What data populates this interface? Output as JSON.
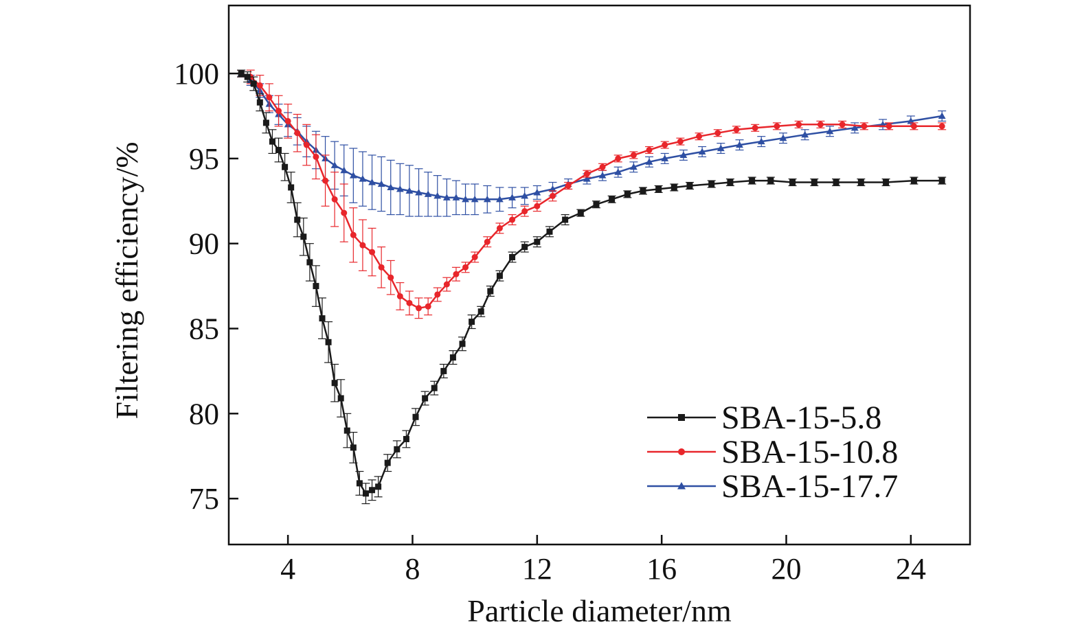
{
  "chart_data": {
    "type": "line",
    "title": "",
    "xlabel": "Particle diameter/nm",
    "ylabel": "Filtering efficiency/%",
    "xlim": [
      2.1,
      25.9
    ],
    "ylim": [
      72.3,
      104
    ],
    "xticks": [
      4,
      8,
      12,
      16,
      20,
      24
    ],
    "yticks": [
      75,
      80,
      85,
      90,
      95,
      100
    ],
    "grid": false,
    "legend": "bottom-right",
    "series": [
      {
        "name": "SBA-15-5.8",
        "color": "#1a1a1a",
        "marker": "square",
        "x": [
          2.5,
          2.7,
          2.9,
          3.1,
          3.3,
          3.5,
          3.7,
          3.9,
          4.1,
          4.3,
          4.5,
          4.7,
          4.9,
          5.1,
          5.3,
          5.5,
          5.7,
          5.9,
          6.1,
          6.3,
          6.5,
          6.7,
          6.9,
          7.2,
          7.5,
          7.8,
          8.1,
          8.4,
          8.7,
          9.0,
          9.3,
          9.6,
          9.9,
          10.2,
          10.5,
          10.8,
          11.2,
          11.6,
          12.0,
          12.4,
          12.9,
          13.4,
          13.9,
          14.4,
          14.9,
          15.4,
          15.9,
          16.4,
          16.9,
          17.6,
          18.2,
          18.9,
          19.5,
          20.2,
          20.9,
          21.6,
          22.4,
          23.2,
          24.1,
          25.0
        ],
        "y": [
          100,
          99.8,
          99.4,
          98.3,
          97.1,
          96.0,
          95.5,
          94.5,
          93.3,
          91.4,
          90.4,
          88.9,
          87.5,
          85.6,
          84.2,
          81.8,
          80.9,
          79.0,
          78.0,
          75.9,
          75.3,
          75.5,
          75.7,
          77.1,
          77.9,
          78.5,
          79.8,
          80.9,
          81.5,
          82.5,
          83.3,
          84.1,
          85.4,
          86.0,
          87.2,
          88.1,
          89.2,
          89.8,
          90.1,
          90.7,
          91.4,
          91.8,
          92.3,
          92.6,
          92.9,
          93.1,
          93.2,
          93.3,
          93.4,
          93.5,
          93.6,
          93.7,
          93.7,
          93.6,
          93.6,
          93.6,
          93.6,
          93.6,
          93.7,
          93.7
        ],
        "error": [
          0.2,
          0.3,
          0.4,
          0.5,
          0.6,
          0.7,
          0.7,
          0.8,
          0.9,
          1.0,
          1.1,
          1.1,
          1.2,
          1.2,
          1.2,
          1.1,
          1.1,
          1.0,
          0.9,
          0.7,
          0.6,
          0.6,
          0.6,
          0.5,
          0.5,
          0.5,
          0.5,
          0.4,
          0.4,
          0.4,
          0.4,
          0.4,
          0.4,
          0.3,
          0.3,
          0.3,
          0.3,
          0.3,
          0.3,
          0.3,
          0.3,
          0.2,
          0.2,
          0.2,
          0.2,
          0.2,
          0.2,
          0.2,
          0.2,
          0.2,
          0.2,
          0.2,
          0.2,
          0.2,
          0.2,
          0.2,
          0.2,
          0.2,
          0.2,
          0.2
        ]
      },
      {
        "name": "SBA-15-10.8",
        "color": "#e8262b",
        "marker": "circle",
        "x": [
          2.5,
          2.8,
          3.1,
          3.4,
          3.7,
          4.0,
          4.3,
          4.6,
          4.9,
          5.2,
          5.5,
          5.8,
          6.1,
          6.4,
          6.7,
          7.0,
          7.3,
          7.6,
          7.9,
          8.2,
          8.5,
          8.8,
          9.1,
          9.4,
          9.7,
          10.0,
          10.4,
          10.8,
          11.2,
          11.6,
          12.0,
          12.5,
          13.0,
          13.6,
          14.1,
          14.6,
          15.1,
          15.6,
          16.1,
          16.6,
          17.2,
          17.8,
          18.4,
          19.0,
          19.7,
          20.4,
          21.1,
          21.8,
          22.5,
          23.3,
          24.1,
          25.0
        ],
        "y": [
          100,
          99.8,
          99.3,
          98.6,
          97.8,
          97.2,
          96.5,
          95.8,
          95.1,
          93.7,
          92.6,
          91.8,
          90.5,
          89.9,
          89.5,
          88.6,
          88.0,
          86.9,
          86.5,
          86.2,
          86.3,
          87.0,
          87.6,
          88.2,
          88.6,
          89.2,
          90.1,
          90.9,
          91.4,
          91.9,
          92.2,
          92.8,
          93.4,
          94.1,
          94.5,
          95.0,
          95.2,
          95.5,
          95.8,
          96.0,
          96.3,
          96.5,
          96.7,
          96.8,
          96.9,
          97.0,
          97.0,
          97.0,
          96.9,
          96.9,
          96.9,
          96.9
        ],
        "error": [
          0.2,
          0.4,
          0.6,
          0.8,
          0.9,
          1.0,
          1.1,
          1.2,
          1.3,
          1.5,
          1.6,
          1.7,
          1.6,
          1.5,
          1.4,
          1.2,
          1.0,
          0.8,
          0.7,
          0.6,
          0.5,
          0.4,
          0.4,
          0.4,
          0.3,
          0.3,
          0.3,
          0.3,
          0.3,
          0.3,
          0.3,
          0.3,
          0.2,
          0.2,
          0.2,
          0.2,
          0.2,
          0.2,
          0.2,
          0.2,
          0.2,
          0.2,
          0.2,
          0.2,
          0.2,
          0.2,
          0.2,
          0.2,
          0.2,
          0.2,
          0.2,
          0.2
        ]
      },
      {
        "name": "SBA-15-17.7",
        "color": "#2e4fa3",
        "marker": "triangle",
        "x": [
          2.5,
          2.8,
          3.1,
          3.4,
          3.7,
          4.0,
          4.3,
          4.6,
          4.9,
          5.2,
          5.5,
          5.8,
          6.1,
          6.4,
          6.7,
          7.0,
          7.3,
          7.6,
          7.9,
          8.2,
          8.5,
          8.8,
          9.1,
          9.4,
          9.7,
          10.0,
          10.4,
          10.8,
          11.2,
          11.6,
          12.0,
          12.5,
          13.0,
          13.6,
          14.1,
          14.6,
          15.1,
          15.6,
          16.1,
          16.7,
          17.3,
          17.9,
          18.5,
          19.2,
          19.9,
          20.6,
          21.4,
          22.2,
          23.1,
          24.0,
          25.0
        ],
        "y": [
          100,
          99.6,
          99.0,
          98.2,
          97.6,
          97.0,
          96.6,
          96.0,
          95.5,
          95.0,
          94.6,
          94.3,
          94.0,
          93.8,
          93.6,
          93.5,
          93.3,
          93.2,
          93.1,
          93.0,
          92.9,
          92.8,
          92.7,
          92.7,
          92.6,
          92.6,
          92.6,
          92.6,
          92.7,
          92.8,
          93.0,
          93.2,
          93.5,
          93.8,
          94.0,
          94.2,
          94.5,
          94.8,
          95.0,
          95.2,
          95.4,
          95.6,
          95.8,
          96.0,
          96.2,
          96.4,
          96.6,
          96.8,
          97.0,
          97.2,
          97.5
        ],
        "error": [
          0.2,
          0.3,
          0.4,
          0.5,
          0.6,
          0.7,
          0.8,
          0.9,
          1.1,
          1.3,
          1.4,
          1.5,
          1.6,
          1.6,
          1.6,
          1.6,
          1.6,
          1.5,
          1.5,
          1.4,
          1.3,
          1.2,
          1.1,
          1.0,
          0.9,
          0.9,
          0.8,
          0.7,
          0.6,
          0.5,
          0.4,
          0.4,
          0.3,
          0.3,
          0.3,
          0.3,
          0.3,
          0.3,
          0.3,
          0.3,
          0.3,
          0.3,
          0.3,
          0.3,
          0.3,
          0.3,
          0.3,
          0.3,
          0.3,
          0.3,
          0.3
        ]
      }
    ]
  }
}
